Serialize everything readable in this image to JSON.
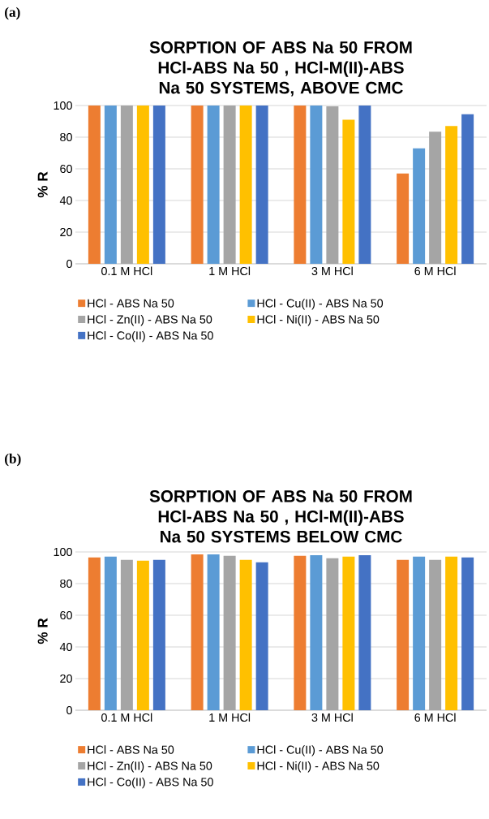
{
  "chart_data": [
    {
      "type": "bar",
      "title": "SORPTION OF ABS Na 50 FROM HCl-ABS Na 50 , HCl-M(II)-ABS Na 50 SYSTEMS, ABOVE CMC",
      "ylabel": "% R",
      "annotations": [
        "(a)"
      ],
      "categories": [
        "0.1 M HCl",
        "1 M HCl",
        "3 M HCl",
        "6 M HCl"
      ],
      "series": [
        {
          "name": "HCl - ABS Na 50",
          "color": "#ed7d31",
          "values": [
            100,
            100,
            100,
            57
          ]
        },
        {
          "name": "HCl - Cu(II) - ABS Na 50",
          "color": "#5b9bd5",
          "values": [
            100,
            100,
            100,
            73
          ]
        },
        {
          "name": "HCl - Zn(II) - ABS Na 50",
          "color": "#a5a5a5",
          "values": [
            100,
            100,
            99.5,
            83.5
          ]
        },
        {
          "name": "HCl - Ni(II) - ABS Na 50",
          "color": "#ffc000",
          "values": [
            100,
            100,
            91,
            87
          ]
        },
        {
          "name": "HCl - Co(II) - ABS Na 50",
          "color": "#4472c4",
          "values": [
            100,
            100,
            100,
            94.5
          ]
        }
      ],
      "ylim": [
        0,
        100
      ],
      "yticks": [
        0,
        20,
        40,
        60,
        80,
        100
      ],
      "grid": "y",
      "legend": "bottom"
    },
    {
      "type": "bar",
      "title": "SORPTION OF ABS Na 50 FROM HCl-ABS Na 50 , HCl-M(II)-ABS Na 50 SYSTEMS BELOW CMC",
      "ylabel": "% R",
      "annotations": [
        "(b)"
      ],
      "categories": [
        "0.1 M HCl",
        "1 M HCl",
        "3 M HCl",
        "6 M HCl"
      ],
      "series": [
        {
          "name": "HCl - ABS Na 50",
          "color": "#ed7d31",
          "values": [
            96.5,
            98.5,
            97.5,
            95
          ]
        },
        {
          "name": "HCl - Cu(II) - ABS Na 50",
          "color": "#5b9bd5",
          "values": [
            97,
            98.5,
            98,
            97
          ]
        },
        {
          "name": "HCl - Zn(II) - ABS Na 50",
          "color": "#a5a5a5",
          "values": [
            95,
            97.5,
            96,
            95
          ]
        },
        {
          "name": "HCl - Ni(II) - ABS Na 50",
          "color": "#ffc000",
          "values": [
            94.5,
            95,
            97,
            97
          ]
        },
        {
          "name": "HCl - Co(II) - ABS Na 50",
          "color": "#4472c4",
          "values": [
            95,
            93.5,
            98,
            96.5
          ]
        }
      ],
      "ylim": [
        0,
        100
      ],
      "yticks": [
        0,
        20,
        40,
        60,
        80,
        100
      ],
      "grid": "y",
      "legend": "bottom"
    }
  ]
}
